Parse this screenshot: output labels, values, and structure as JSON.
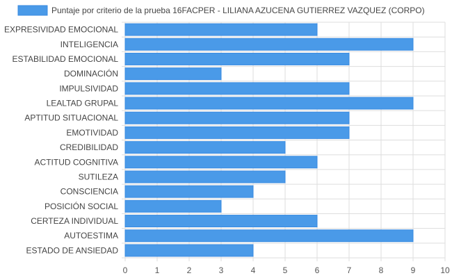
{
  "colors": {
    "bar_fill": "#4a9ae8",
    "bar_stroke": "#3a8be0",
    "grid": "#dddddd",
    "axis_text": "#555555",
    "label_text": "#444444"
  },
  "chart_data": {
    "type": "bar",
    "orientation": "horizontal",
    "series": [
      {
        "name": "Puntaje por criterio de la prueba 16FACPER - LILIANA AZUCENA GUTIERREZ VAZQUEZ (CORPO)",
        "values": [
          6,
          9,
          7,
          3,
          7,
          9,
          7,
          7,
          5,
          6,
          5,
          4,
          3,
          6,
          9,
          4
        ]
      }
    ],
    "categories": [
      "EXPRESIVIDAD EMOCIONAL",
      "INTELIGENCIA",
      "ESTABILIDAD EMOCIONAL",
      "DOMINACIÓN",
      "IMPULSIVIDAD",
      "LEALTAD GRUPAL",
      "APTITUD SITUACIONAL",
      "EMOTIVIDAD",
      "CREDIBILIDAD",
      "ACTITUD COGNITIVA",
      "SUTILEZA",
      "CONSCIENCIA",
      "POSICIÓN SOCIAL",
      "CERTEZA INDIVIDUAL",
      "AUTOESTIMA",
      "ESTADO DE ANSIEDAD"
    ],
    "xlim": [
      0,
      10
    ],
    "xticks": [
      "0",
      "1",
      "2",
      "3",
      "4",
      "5",
      "6",
      "7",
      "8",
      "9",
      "10"
    ],
    "grid": true,
    "legend_position": "top"
  }
}
